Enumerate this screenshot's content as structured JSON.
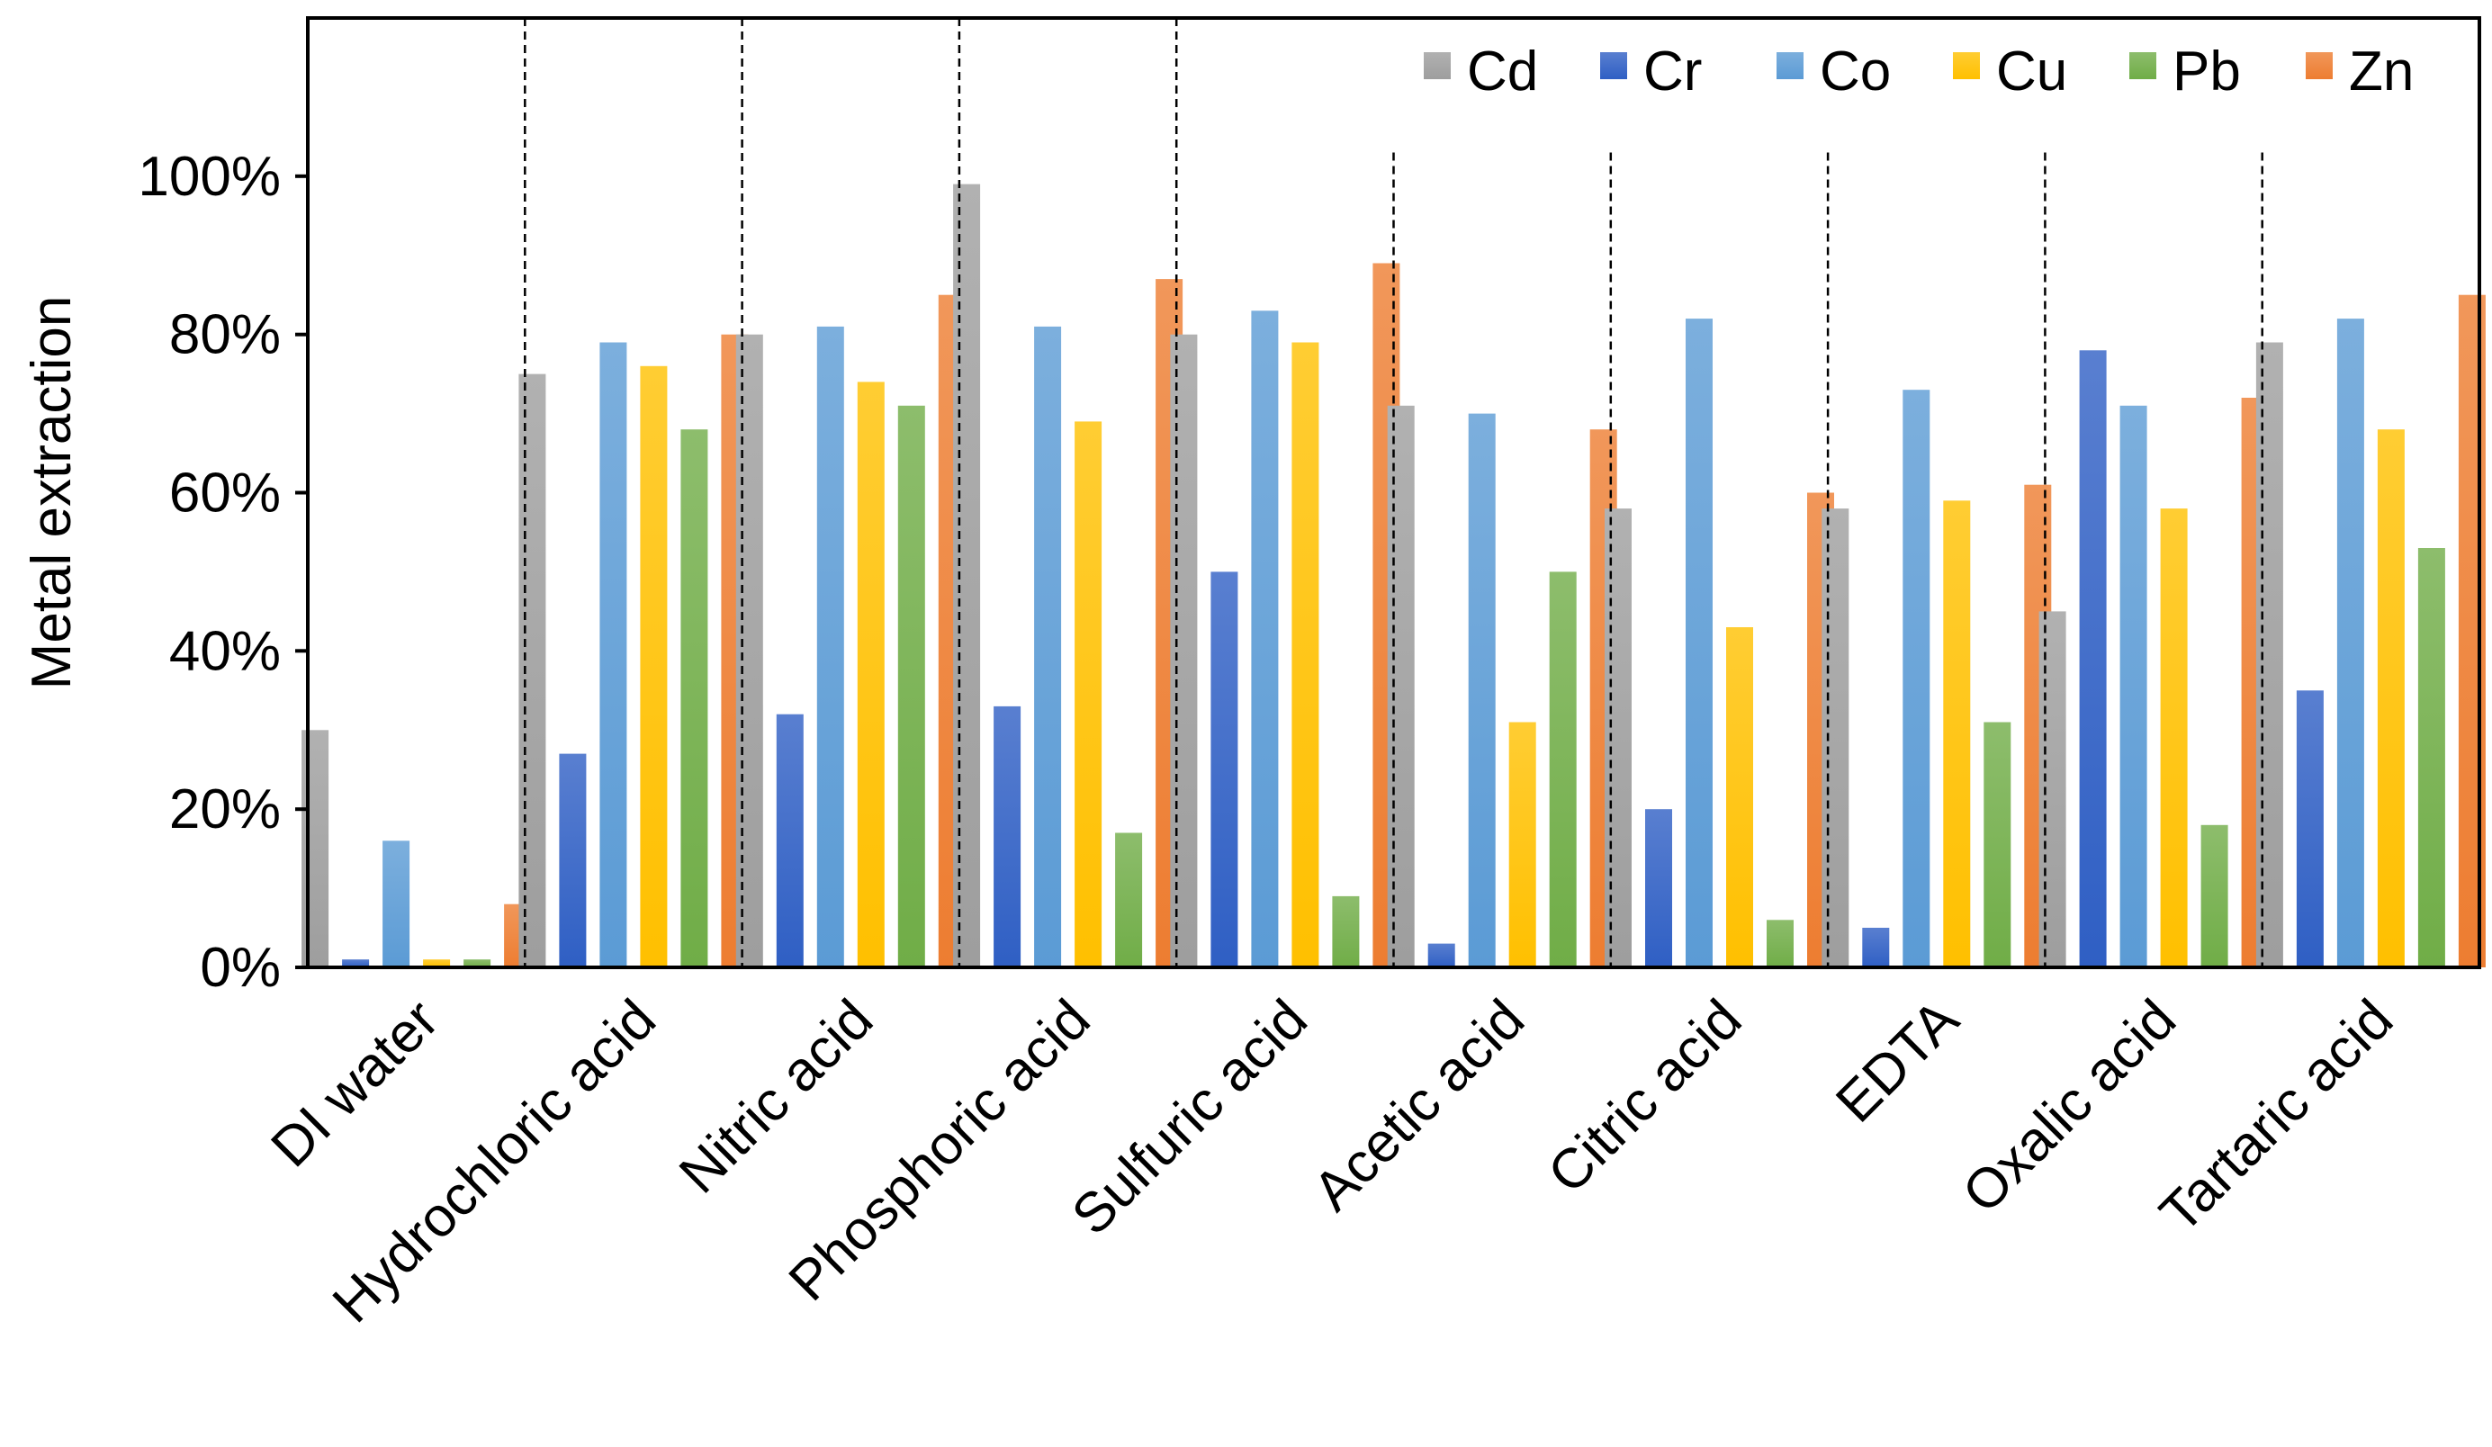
{
  "chart_data": {
    "type": "bar",
    "ylabel": "Metal extraction",
    "xlabel": "",
    "ylim": [
      0,
      1.2
    ],
    "yticks": [
      {
        "value": 0,
        "label": "0%"
      },
      {
        "value": 0.2,
        "label": "20%"
      },
      {
        "value": 0.4,
        "label": "40%"
      },
      {
        "value": 0.6,
        "label": "60%"
      },
      {
        "value": 0.8,
        "label": "80%"
      },
      {
        "value": 1.0,
        "label": "100%"
      }
    ],
    "grid": false,
    "legend_position": "top-right",
    "categories": [
      "DI water",
      "Hydrochloric acid",
      "Nitric acid",
      "Phosphoric acid",
      "Sulfuric acid",
      "Acetic acid",
      "Citric acid",
      "EDTA",
      "Oxalic acid",
      "Tartaric acid"
    ],
    "series": [
      {
        "name": "Cd",
        "color": "#9e9e9e",
        "values": [
          0.3,
          0.75,
          0.8,
          0.99,
          0.8,
          0.71,
          0.58,
          0.58,
          0.45,
          0.79
        ]
      },
      {
        "name": "Cr",
        "color": "#2f5fc4",
        "values": [
          0.01,
          0.27,
          0.32,
          0.33,
          0.5,
          0.03,
          0.2,
          0.05,
          0.78,
          0.35
        ]
      },
      {
        "name": "Co",
        "color": "#5b9bd5",
        "values": [
          0.16,
          0.79,
          0.81,
          0.81,
          0.83,
          0.7,
          0.82,
          0.73,
          0.71,
          0.82
        ]
      },
      {
        "name": "Cu",
        "color": "#ffc000",
        "values": [
          0.01,
          0.76,
          0.74,
          0.69,
          0.79,
          0.31,
          0.43,
          0.59,
          0.58,
          0.68
        ]
      },
      {
        "name": "Pb",
        "color": "#70ad47",
        "values": [
          0.01,
          0.68,
          0.71,
          0.17,
          0.09,
          0.5,
          0.06,
          0.31,
          0.18,
          0.53
        ]
      },
      {
        "name": "Zn",
        "color": "#ed7d31",
        "values": [
          0.08,
          0.8,
          0.85,
          0.87,
          0.89,
          0.68,
          0.6,
          0.61,
          0.72,
          0.85
        ]
      }
    ]
  }
}
